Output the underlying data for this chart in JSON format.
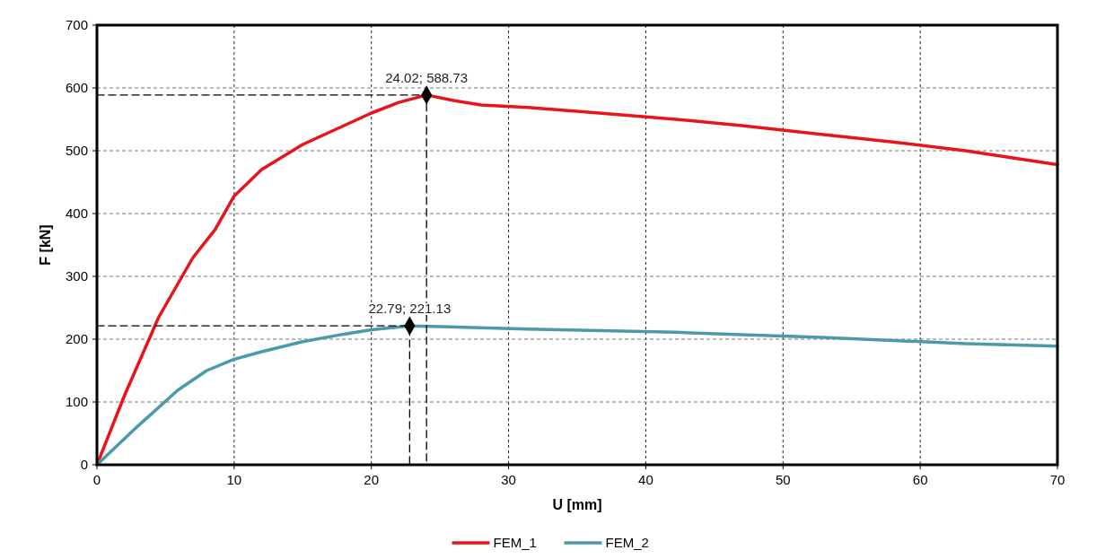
{
  "chart_data": {
    "type": "line",
    "xlabel": "U [mm]",
    "ylabel": "F [kN]",
    "xlim": [
      0,
      70
    ],
    "ylim": [
      0,
      700
    ],
    "xticks": [
      0,
      10,
      20,
      30,
      40,
      50,
      60,
      70
    ],
    "yticks": [
      0,
      100,
      200,
      300,
      400,
      500,
      600,
      700
    ],
    "grid": true,
    "legend": "bottom",
    "marker": "none",
    "line_style": "solid",
    "series": [
      {
        "name": "FEM_1",
        "color": "#e8141b",
        "x": [
          0,
          2,
          4.5,
          7,
          8.6,
          10,
          12,
          15,
          18,
          20,
          22,
          24.02,
          26,
          28,
          31.4,
          36,
          42.2,
          47,
          52.8,
          58,
          63.3,
          70
        ],
        "values": [
          0,
          110,
          235,
          330,
          374,
          428,
          470,
          510,
          540,
          560,
          577,
          588.73,
          580,
          573,
          569,
          561,
          550,
          540,
          526,
          514,
          500,
          478
        ]
      },
      {
        "name": "FEM_2",
        "color": "#4a9aaa",
        "x": [
          0,
          3,
          5.9,
          8,
          10,
          12,
          15,
          18,
          20,
          22.79,
          25,
          31.4,
          36,
          42.2,
          47,
          52.8,
          58,
          63.3,
          70
        ],
        "values": [
          0,
          62,
          119,
          150,
          168,
          180,
          196,
          208,
          215,
          221.13,
          220,
          216,
          214,
          211,
          207,
          203,
          198,
          193,
          189
        ]
      },
      {
        "color": "#000000",
        "line_style": "dashed",
        "x": [
          0,
          24.02,
          24.02
        ],
        "values": [
          588.73,
          588.73,
          0
        ]
      },
      {
        "color": "#000000",
        "line_style": "dashed",
        "x": [
          0,
          22.79,
          22.79
        ],
        "values": [
          221.13,
          221.13,
          0
        ]
      }
    ],
    "annotations": [
      {
        "text": "24.02; 588.73",
        "x": 24.02,
        "y": 588.73
      },
      {
        "text": "22.79; 221.13",
        "x": 22.79,
        "y": 221.13
      }
    ]
  }
}
